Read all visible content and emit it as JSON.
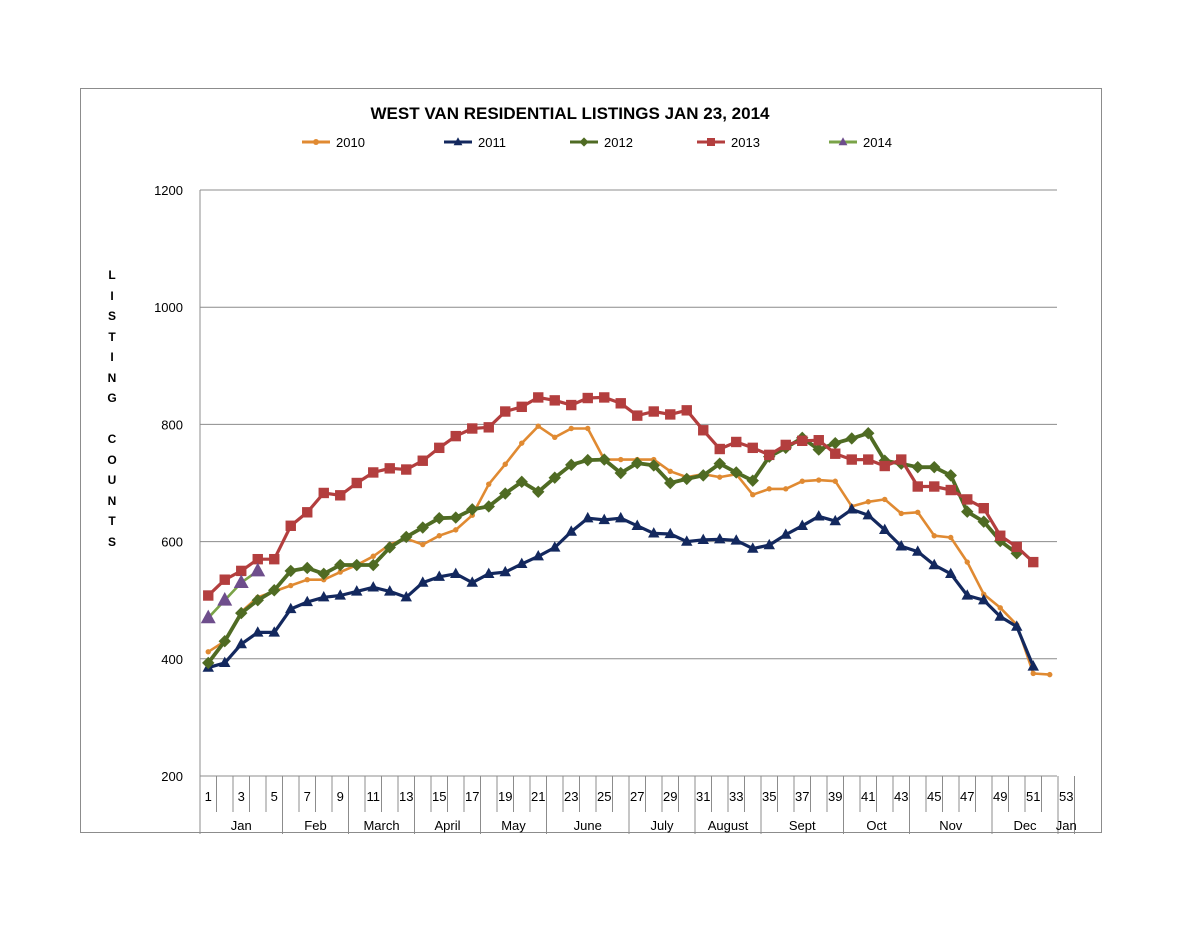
{
  "chart_data": {
    "type": "line",
    "title": "WEST VAN RESIDENTIAL LISTINGS JAN 23, 2014",
    "ylabel": "LISTING COUNTS",
    "xlabel": "",
    "ylim": [
      200,
      1200
    ],
    "yticks": [
      200,
      400,
      600,
      800,
      1000,
      1200
    ],
    "xlim": [
      1,
      53
    ],
    "xticks": [
      1,
      3,
      5,
      7,
      9,
      11,
      13,
      15,
      17,
      19,
      21,
      23,
      25,
      27,
      29,
      31,
      33,
      35,
      37,
      39,
      41,
      43,
      45,
      47,
      49,
      51,
      53
    ],
    "month_labels": [
      {
        "label": "Jan",
        "start": 1,
        "end": 5
      },
      {
        "label": "Feb",
        "start": 6,
        "end": 9
      },
      {
        "label": "March",
        "start": 10,
        "end": 13
      },
      {
        "label": "April",
        "start": 14,
        "end": 17
      },
      {
        "label": "May",
        "start": 18,
        "end": 21
      },
      {
        "label": "June",
        "start": 22,
        "end": 26
      },
      {
        "label": "July",
        "start": 27,
        "end": 30
      },
      {
        "label": "August",
        "start": 31,
        "end": 34
      },
      {
        "label": "Sept",
        "start": 35,
        "end": 39
      },
      {
        "label": "Oct",
        "start": 40,
        "end": 43
      },
      {
        "label": "Nov",
        "start": 44,
        "end": 48
      },
      {
        "label": "Dec",
        "start": 49,
        "end": 52
      },
      {
        "label": "Jan",
        "start": 53,
        "end": 53
      }
    ],
    "grid": true,
    "legend_position": "top",
    "series": [
      {
        "name": "2010",
        "color": "#e08a32",
        "marker": "circle",
        "values": [
          412,
          430,
          480,
          505,
          515,
          525,
          535,
          535,
          548,
          560,
          575,
          595,
          605,
          595,
          610,
          620,
          645,
          698,
          732,
          768,
          797,
          778,
          793,
          793,
          740,
          740,
          740,
          740,
          720,
          710,
          715,
          710,
          715,
          680,
          690,
          690,
          703,
          705,
          703,
          660,
          668,
          672,
          648,
          650,
          610,
          607,
          565,
          510,
          487,
          458,
          375,
          373
        ]
      },
      {
        "name": "2011",
        "color": "#13285e",
        "marker": "triangle",
        "values": [
          385,
          393,
          425,
          445,
          445,
          485,
          497,
          505,
          508,
          515,
          522,
          515,
          505,
          530,
          540,
          545,
          530,
          545,
          548,
          562,
          575,
          590,
          617,
          640,
          637,
          640,
          627,
          614,
          613,
          600,
          603,
          604,
          602,
          588,
          594,
          612,
          627,
          643,
          635,
          655,
          645,
          620,
          592,
          583,
          560,
          545,
          508,
          500,
          472,
          455,
          387
        ]
      },
      {
        "name": "2012",
        "color": "#4f6b23",
        "marker": "diamond",
        "values": [
          393,
          430,
          478,
          500,
          517,
          550,
          555,
          545,
          560,
          560,
          560,
          590,
          608,
          624,
          640,
          641,
          655,
          660,
          682,
          702,
          685,
          709,
          731,
          739,
          740,
          717,
          734,
          730,
          700,
          707,
          713,
          733,
          718,
          704,
          745,
          760,
          777,
          757,
          768,
          776,
          785,
          738,
          733,
          727,
          727,
          713,
          651,
          634,
          601,
          580
        ]
      },
      {
        "name": "2013",
        "color": "#b33e3e",
        "marker": "square",
        "values": [
          508,
          535,
          550,
          570,
          570,
          627,
          650,
          683,
          679,
          700,
          718,
          725,
          723,
          738,
          760,
          780,
          793,
          795,
          822,
          830,
          846,
          841,
          833,
          845,
          846,
          836,
          815,
          822,
          817,
          824,
          790,
          758,
          770,
          760,
          748,
          765,
          772,
          773,
          750,
          740,
          740,
          729,
          740,
          694,
          694,
          688,
          672,
          657,
          610,
          591,
          565
        ]
      },
      {
        "name": "2014",
        "color": "#7aa348",
        "marker": "triangle",
        "marker_color": "#6e4e8c",
        "values": [
          470,
          500,
          530,
          550
        ]
      }
    ]
  }
}
